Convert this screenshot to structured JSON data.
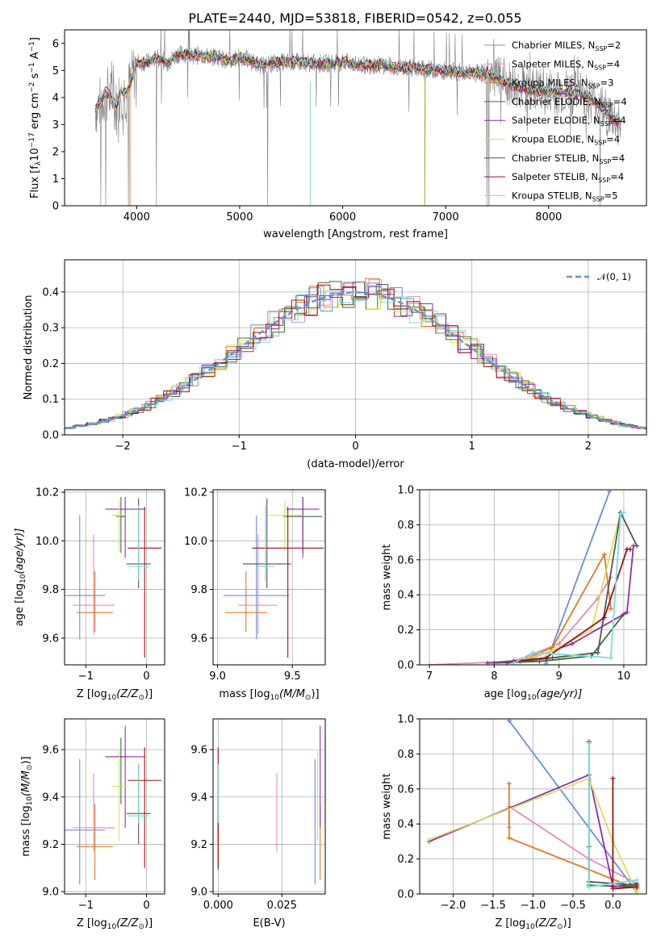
{
  "figure": {
    "title": "PLATE=2440, MJD=53818, FIBERID=0542, z=0.055"
  },
  "colors": {
    "data": "#808080",
    "models": [
      "#6a8fd8",
      "#e58ac0",
      "#e07a28",
      "#3a6e3a",
      "#8e2fa8",
      "#d8e05a",
      "#555555",
      "#a01010",
      "#7adcdc"
    ]
  },
  "chart_data": [
    {
      "id": "spectrum",
      "type": "line",
      "title": "PLATE=2440, MJD=53818, FIBERID=0542, z=0.055",
      "xlabel": "wavelength [Angstrom, rest frame]",
      "ylabel": "Flux [f",
      "ylabel_sub": "λ",
      "ylabel_rest": "10",
      "ylabel_exp": "−17",
      "ylabel_units": " erg cm",
      "ylabel_units_exp": "−2",
      "ylabel_s": " s",
      "ylabel_s_exp": "−1",
      "ylabel_A": " A",
      "ylabel_A_exp": "−1",
      "ylabel_close": "]",
      "xlim": [
        3300,
        8950
      ],
      "ylim": [
        0,
        6.5
      ],
      "xticks": [
        "4000",
        "5000",
        "6000",
        "7000",
        "8000"
      ],
      "xtick_values": [
        4000,
        5000,
        6000,
        7000,
        8000
      ],
      "yticks": [
        "0",
        "1",
        "2",
        "3",
        "4",
        "5",
        "6"
      ],
      "ytick_values": [
        0,
        1,
        2,
        3,
        4,
        5,
        6
      ],
      "grid": false,
      "legend_position": "top-right",
      "continuum": {
        "x": [
          3600,
          3650,
          3700,
          3750,
          3800,
          3850,
          3900,
          3950,
          4000,
          4100,
          4200,
          4300,
          4400,
          4500,
          4600,
          4700,
          4800,
          4900,
          5000,
          5200,
          5400,
          5600,
          5800,
          6000,
          6200,
          6400,
          6600,
          6800,
          7000,
          7200,
          7400,
          7600,
          7800,
          8000,
          8200,
          8400,
          8600,
          8700
        ],
        "y": [
          3.6,
          3.8,
          4.2,
          4.0,
          3.6,
          4.3,
          4.1,
          4.6,
          5.3,
          5.3,
          5.45,
          5.3,
          5.6,
          5.6,
          5.55,
          5.5,
          5.5,
          5.3,
          5.5,
          5.2,
          5.3,
          5.3,
          5.25,
          5.3,
          5.2,
          5.2,
          5.1,
          5.05,
          5.0,
          4.9,
          4.9,
          4.5,
          4.3,
          4.2,
          4.2,
          4.0,
          3.3,
          3.0
        ]
      },
      "legend": [
        {
          "text": "Chabrier MILES, N",
          "sub": "SSP",
          "value": "=2"
        },
        {
          "text": "Salpeter MILES, N",
          "sub": "SSP",
          "value": "=4"
        },
        {
          "text": "Kroupa MILES, N",
          "sub": "SSP",
          "value": "=3"
        },
        {
          "text": "Chabrier ELODIE, N",
          "sub": "SSP",
          "value": "=4"
        },
        {
          "text": "Salpeter ELODIE, N",
          "sub": "SSP",
          "value": "=4"
        },
        {
          "text": "Kroupa ELODIE, N",
          "sub": "SSP",
          "value": "=4"
        },
        {
          "text": "Chabrier STELIB, N",
          "sub": "SSP",
          "value": "=4"
        },
        {
          "text": "Salpeter STELIB, N",
          "sub": "SSP",
          "value": "=4"
        },
        {
          "text": "Kroupa STELIB, N",
          "sub": "SSP",
          "value": "=5"
        }
      ]
    },
    {
      "id": "residuals",
      "type": "line",
      "xlabel": "(data-model)/error",
      "ylabel": "Normed distribution",
      "xlim": [
        -2.5,
        2.5
      ],
      "ylim": [
        0,
        0.49
      ],
      "xticks": [
        "−2",
        "−1",
        "0",
        "1",
        "2"
      ],
      "xtick_values": [
        -2,
        -1,
        0,
        1,
        2
      ],
      "yticks": [
        "0.0",
        "0.1",
        "0.2",
        "0.3",
        "0.4"
      ],
      "ytick_values": [
        0,
        0.1,
        0.2,
        0.3,
        0.4
      ],
      "grid": true,
      "legend_position": "top-right",
      "legend": [
        {
          "text": "𝒩(0, 1)"
        }
      ],
      "series_names": [
        "N(0,1)"
      ]
    },
    {
      "id": "age-vs-z",
      "type": "scatter",
      "xlabel": "Z [log",
      "xlabel_sub": "10",
      "xlabel_rest": "(Z/Z",
      "xlabel_sub2": "⊙",
      "xlabel_close": ")]",
      "ylabel": "age  [log",
      "ylabel_sub": "10",
      "ylabel_rest": "(age/yr)]",
      "xlim": [
        -1.35,
        0.3
      ],
      "ylim": [
        9.49,
        10.21
      ],
      "xticks": [
        "−1",
        "0"
      ],
      "xtick_values": [
        -1,
        0
      ],
      "yticks": [
        "9.6",
        "9.8",
        "10.0",
        "10.2"
      ],
      "ytick_values": [
        9.6,
        9.8,
        10.0,
        10.2
      ],
      "grid": true,
      "points": [
        {
          "x": -1.1,
          "xerr": 0.42,
          "y": 9.775,
          "yerr_lo": 0.18,
          "yerr_hi": 0.33
        },
        {
          "x": -0.87,
          "xerr": 0.35,
          "y": 9.735,
          "yerr_lo": 0.12,
          "yerr_hi": 0.29
        },
        {
          "x": -0.85,
          "xerr": 0.3,
          "y": 9.705,
          "yerr_lo": 0.08,
          "yerr_hi": 0.17
        },
        {
          "x": -0.42,
          "xerr": 0.08,
          "y": 10.1,
          "yerr_lo": 0.15,
          "yerr_hi": 0.08
        },
        {
          "x": -0.35,
          "xerr": 0.33,
          "y": 10.13,
          "yerr_lo": 0.2,
          "yerr_hi": 0.05
        },
        {
          "x": -0.45,
          "xerr": 0.13,
          "y": 10.105,
          "yerr_lo": 0.15,
          "yerr_hi": 0.06
        },
        {
          "x": -0.13,
          "xerr": 0.2,
          "y": 9.905,
          "yerr_lo": 0.1,
          "yerr_hi": 0.27
        },
        {
          "x": -0.03,
          "xerr": 0.28,
          "y": 9.97,
          "yerr_lo": 0.45,
          "yerr_hi": 0.17
        },
        {
          "x": -0.13,
          "xerr": 0.17,
          "y": 9.895,
          "yerr_lo": 0.06,
          "yerr_hi": 0.25
        }
      ]
    },
    {
      "id": "age-vs-mass",
      "type": "scatter",
      "xlabel": "mass [log",
      "xlabel_sub": "10",
      "xlabel_rest": "(M/M",
      "xlabel_sub2": "⊙",
      "xlabel_close": ")]",
      "xlim": [
        8.97,
        9.72
      ],
      "ylim": [
        9.49,
        10.21
      ],
      "xticks": [
        "9.0",
        "9.5"
      ],
      "xtick_values": [
        9.0,
        9.5
      ],
      "yticks": [
        "9.6",
        "9.8",
        "10.0",
        "10.2"
      ],
      "ytick_values": [
        9.6,
        9.8,
        10.0,
        10.2
      ],
      "grid": true,
      "points": [
        {
          "x": 9.26,
          "xerr": 0.22,
          "y": 9.775,
          "yerr_lo": 0.18,
          "yerr_hi": 0.33
        },
        {
          "x": 9.27,
          "xerr": 0.13,
          "y": 9.735,
          "yerr_lo": 0.12,
          "yerr_hi": 0.29
        },
        {
          "x": 9.19,
          "xerr": 0.14,
          "y": 9.705,
          "yerr_lo": 0.08,
          "yerr_hi": 0.17
        },
        {
          "x": 9.57,
          "xerr": 0.13,
          "y": 10.1,
          "yerr_lo": 0.15,
          "yerr_hi": 0.08
        },
        {
          "x": 9.57,
          "xerr": 0.11,
          "y": 10.13,
          "yerr_lo": 0.2,
          "yerr_hi": 0.05
        },
        {
          "x": 9.45,
          "xerr": 0.12,
          "y": 10.105,
          "yerr_lo": 0.15,
          "yerr_hi": 0.06
        },
        {
          "x": 9.33,
          "xerr": 0.16,
          "y": 9.905,
          "yerr_lo": 0.1,
          "yerr_hi": 0.27
        },
        {
          "x": 9.47,
          "xerr": 0.24,
          "y": 9.97,
          "yerr_lo": 0.45,
          "yerr_hi": 0.17
        },
        {
          "x": 9.32,
          "xerr": 0.06,
          "y": 9.895,
          "yerr_lo": 0.06,
          "yerr_hi": 0.25
        }
      ]
    },
    {
      "id": "weight-vs-age",
      "type": "line",
      "xlabel": "age  [log",
      "xlabel_sub": "10",
      "xlabel_rest": "(age/yr)]",
      "ylabel": "mass weight",
      "xlim": [
        6.85,
        10.35
      ],
      "ylim": [
        0,
        1.0
      ],
      "xticks": [
        "7",
        "8",
        "9",
        "10"
      ],
      "xtick_values": [
        7,
        8,
        9,
        10
      ],
      "yticks": [
        "0.0",
        "0.2",
        "0.4",
        "0.6",
        "0.8",
        "1.0"
      ],
      "ytick_values": [
        0,
        0.2,
        0.4,
        0.6,
        0.8,
        1.0
      ],
      "grid": true,
      "series": [
        {
          "x": [
            8.8,
            9.78
          ],
          "y": [
            0.01,
            0.99
          ]
        },
        {
          "x": [
            7.0,
            8.3,
            9.0,
            9.6,
            9.8
          ],
          "y": [
            0.0,
            0.02,
            0.12,
            0.38,
            0.5
          ]
        },
        {
          "x": [
            8.4,
            8.9,
            9.7,
            9.8
          ],
          "y": [
            0.02,
            0.1,
            0.63,
            0.32
          ]
        },
        {
          "x": [
            8.0,
            8.7,
            9.5,
            10.0
          ],
          "y": [
            0.01,
            0.02,
            0.05,
            0.29
          ]
        },
        {
          "x": [
            7.9,
            8.5,
            9.2,
            10.05,
            10.15
          ],
          "y": [
            0.01,
            0.03,
            0.12,
            0.3,
            0.68
          ]
        },
        {
          "x": [
            8.3,
            8.9,
            9.5,
            9.95
          ],
          "y": [
            0.01,
            0.08,
            0.2,
            0.87
          ]
        },
        {
          "x": [
            8.2,
            8.9,
            9.6,
            9.95,
            10.2
          ],
          "y": [
            0.01,
            0.04,
            0.07,
            0.87,
            0.68
          ]
        },
        {
          "x": [
            8.3,
            8.8,
            9.7,
            10.05,
            10.1
          ],
          "y": [
            0.02,
            0.04,
            0.27,
            0.66,
            0.66
          ]
        },
        {
          "x": [
            8.3,
            8.6,
            9.8,
            9.95,
            10.0
          ],
          "y": [
            0.01,
            0.07,
            0.04,
            0.86,
            0.87
          ]
        }
      ]
    },
    {
      "id": "mass-vs-z",
      "type": "scatter",
      "xlabel": "Z [log",
      "xlabel_sub": "10",
      "xlabel_rest": "(Z/Z",
      "xlabel_sub2": "⊙",
      "xlabel_close": ")]",
      "ylabel": "mass [log",
      "ylabel_sub": "10",
      "ylabel_rest": "(M/M",
      "ylabel_sub2": "⊙",
      "ylabel_close": ")]",
      "xlim": [
        -1.35,
        0.3
      ],
      "ylim": [
        8.99,
        9.73
      ],
      "xticks": [
        "−1",
        "0"
      ],
      "xtick_values": [
        -1,
        0
      ],
      "yticks": [
        "9.0",
        "9.2",
        "9.4",
        "9.6"
      ],
      "ytick_values": [
        9.0,
        9.2,
        9.4,
        9.6
      ],
      "grid": true,
      "points": [
        {
          "x": -1.1,
          "xerr": 0.42,
          "y": 9.26,
          "yerr_lo": 0.23,
          "yerr_hi": 0.3
        },
        {
          "x": -0.87,
          "xerr": 0.35,
          "y": 9.27,
          "yerr_lo": 0.1,
          "yerr_hi": 0.23
        },
        {
          "x": -0.85,
          "xerr": 0.3,
          "y": 9.19,
          "yerr_lo": 0.14,
          "yerr_hi": 0.18
        },
        {
          "x": -0.42,
          "xerr": 0.08,
          "y": 9.57,
          "yerr_lo": 0.2,
          "yerr_hi": 0.08
        },
        {
          "x": -0.35,
          "xerr": 0.33,
          "y": 9.57,
          "yerr_lo": 0.3,
          "yerr_hi": 0.13
        },
        {
          "x": -0.45,
          "xerr": 0.13,
          "y": 9.445,
          "yerr_lo": 0.23,
          "yerr_hi": 0.15
        },
        {
          "x": -0.13,
          "xerr": 0.2,
          "y": 9.33,
          "yerr_lo": 0.13,
          "yerr_hi": 0.21
        },
        {
          "x": -0.03,
          "xerr": 0.28,
          "y": 9.47,
          "yerr_lo": 0.37,
          "yerr_hi": 0.14
        },
        {
          "x": -0.13,
          "xerr": 0.17,
          "y": 9.32,
          "yerr_lo": 0.03,
          "yerr_hi": 0.22
        }
      ]
    },
    {
      "id": "mass-vs-ebv",
      "type": "scatter",
      "xlabel": "E(B-V)",
      "xlim": [
        -0.002,
        0.042
      ],
      "ylim": [
        8.99,
        9.73
      ],
      "xticks": [
        "0.000",
        "0.025"
      ],
      "xtick_values": [
        0,
        0.025
      ],
      "yticks": [
        "9.0",
        "9.2",
        "9.4",
        "9.6"
      ],
      "ytick_values": [
        9.0,
        9.2,
        9.4,
        9.6
      ],
      "grid": true,
      "points": [
        {
          "x": 0.038,
          "y": 9.26,
          "yerr_lo": 0.23,
          "yerr_hi": 0.3
        },
        {
          "x": 0.023,
          "y": 9.33,
          "yerr_lo": 0.16,
          "yerr_hi": 0.17
        },
        {
          "x": 0.04,
          "y": 9.19,
          "yerr_lo": 0.14,
          "yerr_hi": 0.18
        },
        {
          "x": 0.0,
          "y": 9.22,
          "yerr_lo": 0.13,
          "yerr_hi": 0.2
        },
        {
          "x": 0.04,
          "y": 9.57,
          "yerr_lo": 0.3,
          "yerr_hi": 0.13
        },
        {
          "x": 0.039,
          "y": 9.445,
          "yerr_lo": 0.23,
          "yerr_hi": 0.15
        },
        {
          "x": 0.0,
          "y": 9.33,
          "yerr_lo": 0.13,
          "yerr_hi": 0.21
        },
        {
          "x": 0.0,
          "y": 9.47,
          "yerr_lo": 0.37,
          "yerr_hi": 0.14
        },
        {
          "x": 0.0,
          "y": 9.32,
          "yerr_lo": 0.03,
          "yerr_hi": 0.22
        }
      ]
    },
    {
      "id": "weight-vs-z",
      "type": "line",
      "xlabel": "Z [log",
      "xlabel_sub": "10",
      "xlabel_rest": "(Z/Z",
      "xlabel_sub2": "⊙",
      "xlabel_close": ")]",
      "ylabel": "mass weight",
      "xlim": [
        -2.42,
        0.42
      ],
      "ylim": [
        0,
        1.0
      ],
      "xticks": [
        "−2.0",
        "−1.5",
        "−1.0",
        "−0.5",
        "0.0"
      ],
      "xtick_values": [
        -2.0,
        -1.5,
        -1.0,
        -0.5,
        0.0
      ],
      "yticks": [
        "0.0",
        "0.2",
        "0.4",
        "0.6",
        "0.8",
        "1.0"
      ],
      "ytick_values": [
        0,
        0.2,
        0.4,
        0.6,
        0.8,
        1.0
      ],
      "grid": true,
      "series": [
        {
          "x": [
            -1.3,
            0.3
          ],
          "y": [
            0.99,
            0.01
          ]
        },
        {
          "x": [
            -1.3,
            -1.3,
            -0.3,
            0.3
          ],
          "y": [
            0.38,
            0.5,
            0.2,
            0.06
          ]
        },
        {
          "x": [
            -1.3,
            -1.3,
            0.3
          ],
          "y": [
            0.63,
            0.32,
            0.03
          ]
        },
        {
          "x": [
            -0.3,
            -0.3,
            0.3
          ],
          "y": [
            0.27,
            0.05,
            0.04
          ]
        },
        {
          "x": [
            -2.3,
            -0.3,
            0.0,
            0.3
          ],
          "y": [
            0.3,
            0.68,
            0.04,
            0.06
          ]
        },
        {
          "x": [
            -2.3,
            -0.3,
            0.0,
            0.3
          ],
          "y": [
            0.31,
            0.66,
            0.3,
            0.01
          ]
        },
        {
          "x": [
            -0.3,
            -0.3,
            0.3
          ],
          "y": [
            0.87,
            0.07,
            0.05
          ]
        },
        {
          "x": [
            0.0,
            0.0,
            0.3
          ],
          "y": [
            0.66,
            0.03,
            0.04
          ]
        },
        {
          "x": [
            -0.3,
            -0.3,
            0.3
          ],
          "y": [
            0.86,
            0.04,
            0.08
          ]
        }
      ]
    }
  ]
}
